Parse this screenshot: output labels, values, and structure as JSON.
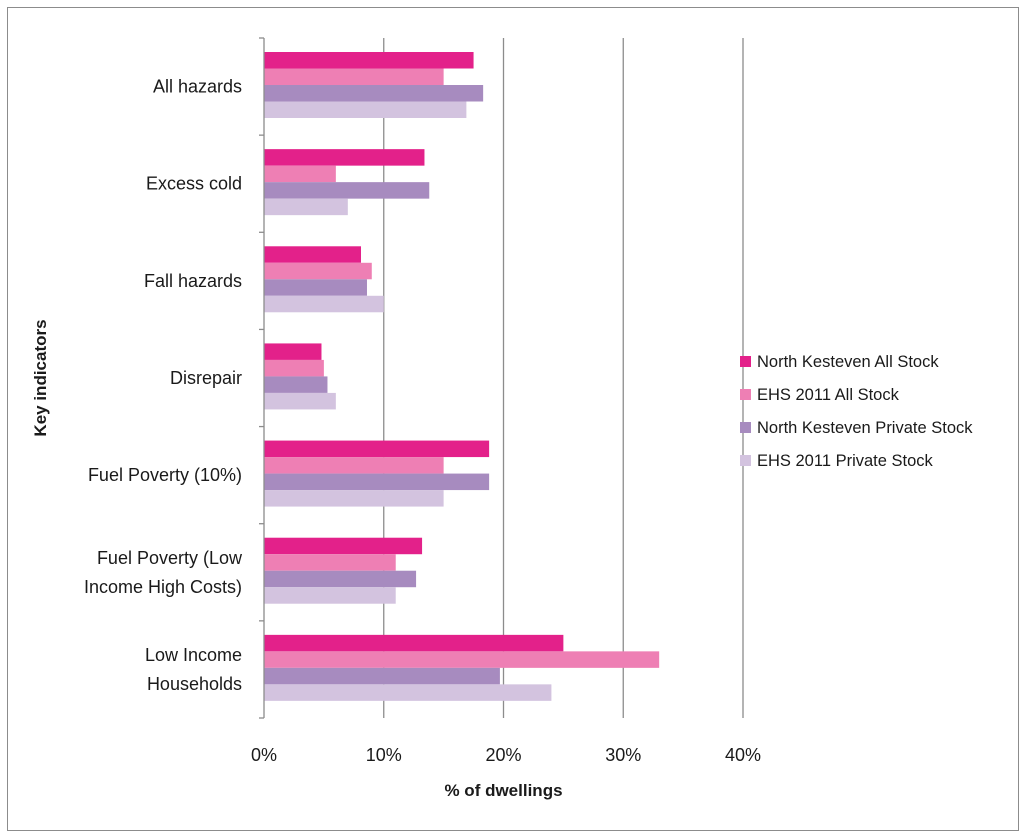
{
  "chart_data": {
    "type": "bar",
    "orientation": "horizontal",
    "categories": [
      [
        "All hazards"
      ],
      [
        "Excess cold"
      ],
      [
        "Fall hazards"
      ],
      [
        "Disrepair"
      ],
      [
        "Fuel Poverty (10%)"
      ],
      [
        "Fuel Poverty (Low",
        "Income High Costs)"
      ],
      [
        "Low Income",
        "Households"
      ]
    ],
    "series": [
      {
        "name": "North Kesteven All Stock",
        "color": "#e3218a",
        "values": [
          17.5,
          13.4,
          8.1,
          4.8,
          18.8,
          13.2,
          25.0
        ]
      },
      {
        "name": "EHS 2011 All Stock",
        "color": "#ee7fb4",
        "values": [
          15.0,
          6.0,
          9.0,
          5.0,
          15.0,
          11.0,
          33.0
        ]
      },
      {
        "name": "North Kesteven Private Stock",
        "color": "#a78bbf",
        "values": [
          18.3,
          13.8,
          8.6,
          5.3,
          18.8,
          12.7,
          19.7
        ]
      },
      {
        "name": "EHS 2011 Private Stock",
        "color": "#d3c3df",
        "values": [
          16.9,
          7.0,
          10.0,
          6.0,
          15.0,
          11.0,
          24.0
        ]
      }
    ],
    "xlabel": "% of dwellings",
    "ylabel": "Key indicators",
    "xlim": [
      0,
      40
    ],
    "xticks": [
      0,
      10,
      20,
      30,
      40
    ],
    "xtick_labels": [
      "0%",
      "10%",
      "20%",
      "30%",
      "40%"
    ],
    "grid": "vertical",
    "legend": "right"
  }
}
